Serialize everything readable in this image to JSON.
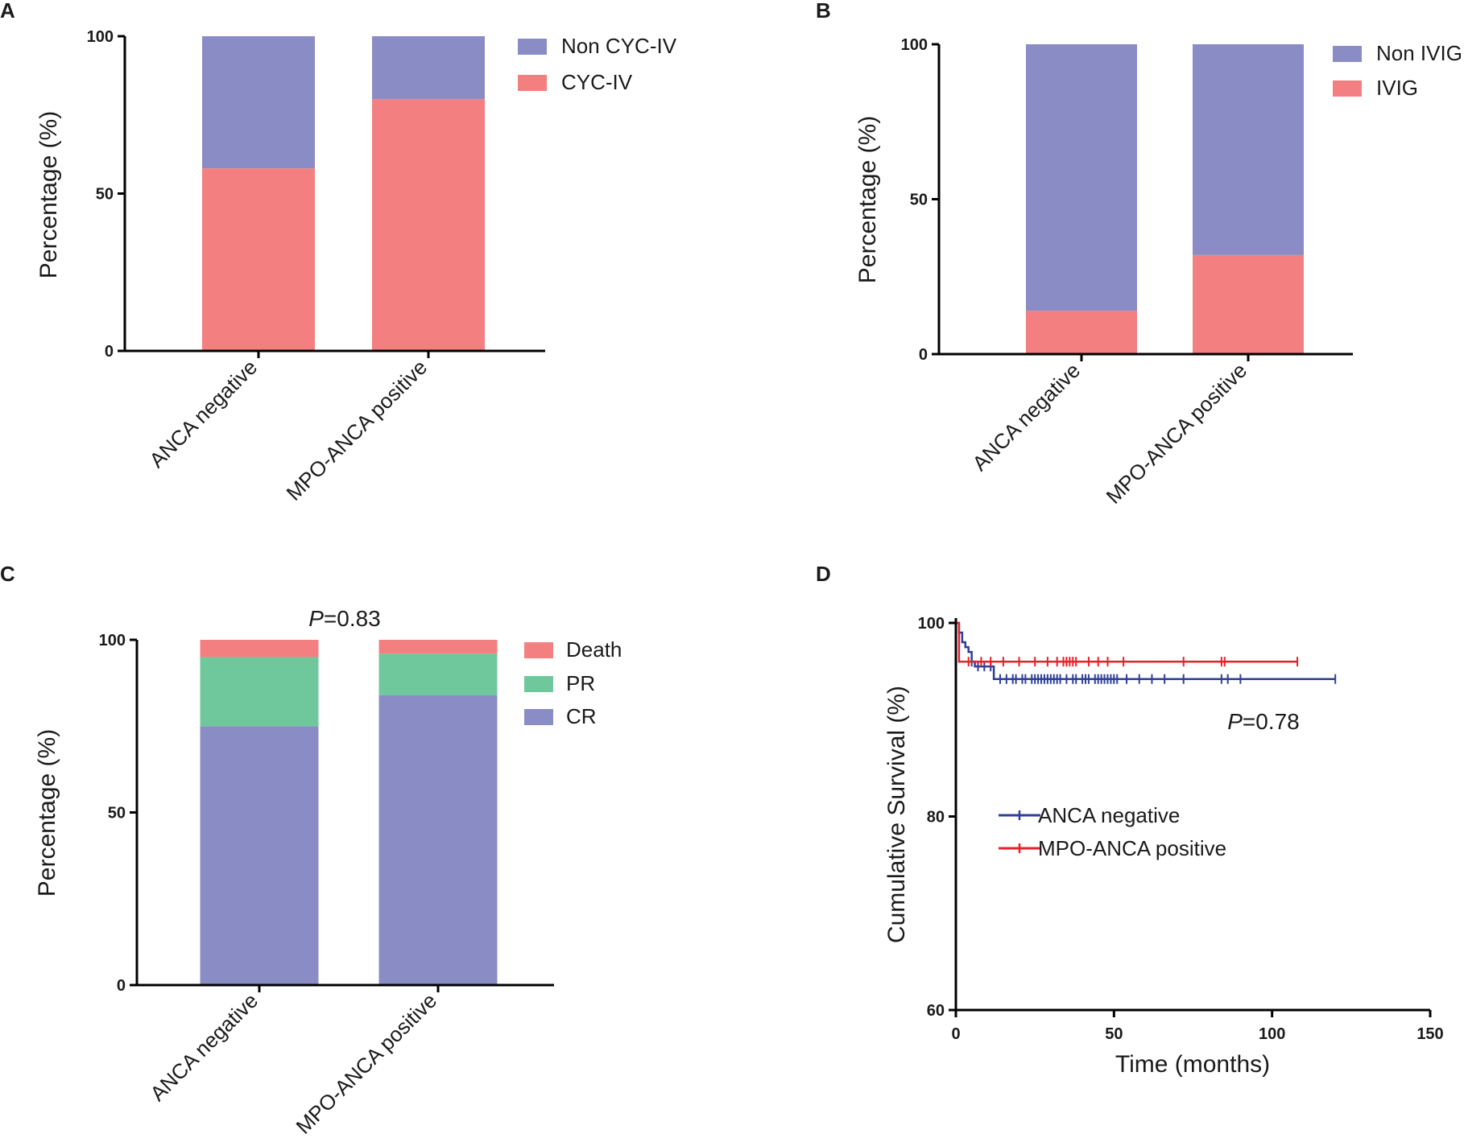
{
  "colors": {
    "purple": "#8a8cc5",
    "salmon": "#f47f80",
    "green": "#6fc89c",
    "blue_line": "#2e3f9a",
    "red_line": "#e8202a"
  },
  "chart_data": [
    {
      "panel": "A",
      "type": "bar",
      "stacked": true,
      "title": "",
      "xlabel": "",
      "ylabel": "Percentage (%)",
      "ylim": [
        0,
        100
      ],
      "yticks": [
        "0",
        "50",
        "100"
      ],
      "categories": [
        "ANCA negative",
        "MPO-ANCA positive"
      ],
      "series": [
        {
          "name": "CYC-IV",
          "color": "#f47f80",
          "values": [
            58,
            80
          ]
        },
        {
          "name": "Non CYC-IV",
          "color": "#8a8cc5",
          "values": [
            42,
            20
          ]
        }
      ],
      "legend": [
        "Non CYC-IV",
        "CYC-IV"
      ],
      "legend_position": "top-right"
    },
    {
      "panel": "B",
      "type": "bar",
      "stacked": true,
      "title": "",
      "xlabel": "",
      "ylabel": "Percentage (%)",
      "ylim": [
        0,
        100
      ],
      "yticks": [
        "0",
        "50",
        "100"
      ],
      "categories": [
        "ANCA negative",
        "MPO-ANCA positive"
      ],
      "series": [
        {
          "name": "IVIG",
          "color": "#f47f80",
          "values": [
            14,
            32
          ]
        },
        {
          "name": "Non IVIG",
          "color": "#8a8cc5",
          "values": [
            86,
            68
          ]
        }
      ],
      "legend": [
        "Non IVIG",
        "IVIG"
      ],
      "legend_position": "top-right"
    },
    {
      "panel": "C",
      "type": "bar",
      "stacked": true,
      "title": "",
      "annotation": {
        "italic": "P",
        "text": "=0.83"
      },
      "xlabel": "",
      "ylabel": "Percentage (%)",
      "ylim": [
        0,
        100
      ],
      "yticks": [
        "0",
        "50",
        "100"
      ],
      "categories": [
        "ANCA negative",
        "MPO-ANCA positive"
      ],
      "series": [
        {
          "name": "CR",
          "color": "#8a8cc5",
          "values": [
            75,
            84
          ]
        },
        {
          "name": "PR",
          "color": "#6fc89c",
          "values": [
            20,
            12
          ]
        },
        {
          "name": "Death",
          "color": "#f47f80",
          "values": [
            5,
            4
          ]
        }
      ],
      "legend": [
        "Death",
        "PR",
        "CR"
      ],
      "legend_position": "top-right"
    },
    {
      "panel": "D",
      "type": "line",
      "subtype": "kaplan-meier",
      "title": "",
      "annotation": {
        "italic": "P",
        "text": "=0.78"
      },
      "xlabel": "Time (months)",
      "ylabel": "Cumulative Survival (%)",
      "xlim": [
        0,
        150
      ],
      "ylim": [
        60,
        100
      ],
      "xticks": [
        "0",
        "50",
        "100",
        "150"
      ],
      "yticks": [
        "60",
        "80",
        "100"
      ],
      "legend_position": "center-left",
      "series": [
        {
          "name": "ANCA negative",
          "color": "#2e3f9a",
          "steps": [
            [
              0,
              100
            ],
            [
              1,
              99
            ],
            [
              2,
              98
            ],
            [
              3,
              97.5
            ],
            [
              4,
              97
            ],
            [
              5,
              96
            ],
            [
              6,
              95.5
            ],
            [
              12,
              94.2
            ],
            [
              120,
              94.2
            ]
          ],
          "censored": [
            5,
            7,
            9,
            11,
            14,
            16,
            18,
            19,
            21,
            22,
            24,
            25,
            26,
            27,
            28,
            29,
            30,
            31,
            32,
            33,
            35,
            37,
            38,
            40,
            41,
            42,
            44,
            45,
            46,
            47,
            48,
            49,
            50,
            51,
            54,
            58,
            62,
            66,
            72,
            84,
            86,
            90,
            120
          ]
        },
        {
          "name": "MPO-ANCA positive",
          "color": "#e8202a",
          "steps": [
            [
              0,
              100
            ],
            [
              1,
              96
            ],
            [
              108,
              96
            ]
          ],
          "censored": [
            4,
            8,
            11,
            15,
            20,
            25,
            29,
            32,
            34,
            35,
            36,
            37,
            38,
            42,
            45,
            48,
            53,
            72,
            84,
            85,
            108
          ]
        }
      ]
    }
  ]
}
